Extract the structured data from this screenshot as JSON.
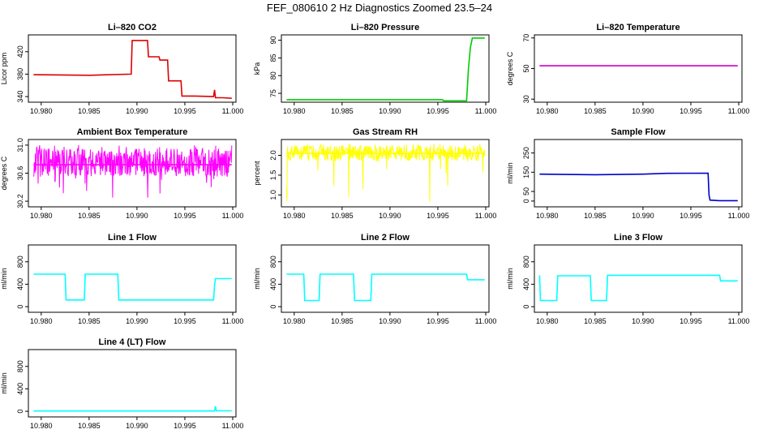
{
  "figure": {
    "title": "FEF_080610  2 Hz Diagnostics Zoomed 23.5–24"
  },
  "chart_data": [
    {
      "type": "line",
      "title": "Li–820 CO2",
      "xlabel": "",
      "ylabel": "Licor ppm",
      "color": "#dd0000",
      "xlim": [
        10.979,
        11.0
      ],
      "ylim": [
        330,
        450
      ],
      "xticks": [
        "10.980",
        "10.985",
        "10.990",
        "10.995",
        "11.000"
      ],
      "yticks": [
        "340",
        "380",
        "420"
      ],
      "series": [
        {
          "x": [
            10.9792,
            10.985,
            10.9894,
            10.9895,
            10.9911,
            10.9912,
            10.9923,
            10.9924,
            10.9932,
            10.9933,
            10.9946,
            10.9947,
            10.996,
            10.998,
            10.9981,
            10.9982,
            10.999,
            10.9999
          ],
          "y": [
            379,
            378,
            380,
            440,
            440,
            411,
            411,
            405,
            405,
            368,
            368,
            341,
            341,
            340,
            352,
            338,
            338,
            337
          ]
        }
      ]
    },
    {
      "type": "line",
      "title": "Li–820 Pressure",
      "xlabel": "",
      "ylabel": "kPa",
      "color": "#00cc00",
      "xlim": [
        10.979,
        11.0
      ],
      "ylim": [
        72.5,
        91.5
      ],
      "xticks": [
        "10.980",
        "10.985",
        "10.990",
        "10.995",
        "11.000"
      ],
      "yticks": [
        "75",
        "80",
        "85",
        "90"
      ],
      "series": [
        {
          "x": [
            10.9792,
            10.985,
            10.99,
            10.9955,
            10.9956,
            10.998,
            10.9982,
            10.9984,
            10.9986,
            10.9999
          ],
          "y": [
            73.2,
            73.2,
            73.2,
            73.2,
            72.9,
            72.9,
            82.0,
            88.0,
            90.6,
            90.6
          ]
        }
      ]
    },
    {
      "type": "line",
      "title": "Li–820 Temperature",
      "xlabel": "",
      "ylabel": "degrees C",
      "color": "#cc00cc",
      "xlim": [
        10.979,
        11.0
      ],
      "ylim": [
        28,
        72
      ],
      "xticks": [
        "10.980",
        "10.985",
        "10.990",
        "10.995",
        "11.000"
      ],
      "yticks": [
        "30",
        "50",
        "70"
      ],
      "series": [
        {
          "x": [
            10.9792,
            10.9999
          ],
          "y": [
            51.8,
            51.8
          ]
        }
      ]
    },
    {
      "type": "line",
      "title": "Ambient Box Temperature",
      "xlabel": "",
      "ylabel": "degrees C",
      "color": "#ff00ff",
      "xlim": [
        10.979,
        11.0
      ],
      "ylim": [
        30.12,
        31.08
      ],
      "xticks": [
        "10.980",
        "10.985",
        "10.990",
        "10.995",
        "11.000"
      ],
      "yticks": [
        "30.2",
        "30.6",
        "31.0"
      ],
      "series": [
        {
          "x": [
            10.9792,
            10.9999
          ],
          "y": [
            30.72,
            30.72
          ]
        }
      ],
      "noise": {
        "kind": "band",
        "low": 30.55,
        "high": 30.95,
        "min": 30.2,
        "max": 31.0,
        "seed": 11
      }
    },
    {
      "type": "line",
      "title": "Gas Stream RH",
      "xlabel": "",
      "ylabel": "percent",
      "color": "#ffff00",
      "xlim": [
        10.979,
        11.0
      ],
      "ylim": [
        0.7,
        2.4
      ],
      "xticks": [
        "10.980",
        "10.985",
        "10.990",
        "10.995",
        "11.000"
      ],
      "yticks": [
        "1.0",
        "1.5",
        "2.0"
      ],
      "series": [
        {
          "x": [
            10.9792,
            10.9999
          ],
          "y": [
            2.05,
            2.05
          ]
        }
      ],
      "noise": {
        "kind": "band",
        "low": 1.85,
        "high": 2.25,
        "min": 0.75,
        "max": 2.3,
        "seed": 23
      }
    },
    {
      "type": "line",
      "title": "Sample Flow",
      "xlabel": "",
      "ylabel": "ml/min",
      "color": "#0000cc",
      "xlim": [
        10.979,
        11.0
      ],
      "ylim": [
        -30,
        320
      ],
      "xticks": [
        "10.980",
        "10.985",
        "10.990",
        "10.995",
        "11.000"
      ],
      "yticks": [
        "0",
        "50",
        "150",
        "250"
      ],
      "series": [
        {
          "x": [
            10.9792,
            10.985,
            10.99,
            10.9925,
            10.9968,
            10.9969,
            10.997,
            10.998,
            10.9999
          ],
          "y": [
            140,
            137,
            140,
            144,
            145,
            30,
            5,
            2,
            2
          ]
        }
      ]
    },
    {
      "type": "line",
      "title": "Line 1 Flow",
      "xlabel": "",
      "ylabel": "ml/min",
      "color": "#00ffff",
      "xlim": [
        10.979,
        11.0
      ],
      "ylim": [
        -100,
        1100
      ],
      "xticks": [
        "10.980",
        "10.985",
        "10.990",
        "10.995",
        "11.000"
      ],
      "yticks": [
        "0",
        "400",
        "800"
      ],
      "series": [
        {
          "x": [
            10.9792,
            10.9825,
            10.9826,
            10.9845,
            10.9846,
            10.988,
            10.9881,
            10.998,
            10.9981,
            10.9982,
            10.9999
          ],
          "y": [
            580,
            580,
            120,
            120,
            580,
            580,
            120,
            120,
            380,
            500,
            500
          ]
        }
      ]
    },
    {
      "type": "line",
      "title": "Line 2 Flow",
      "xlabel": "",
      "ylabel": "ml/min",
      "color": "#00ffff",
      "xlim": [
        10.979,
        11.0
      ],
      "ylim": [
        -100,
        1100
      ],
      "xticks": [
        "10.980",
        "10.985",
        "10.990",
        "10.995",
        "11.000"
      ],
      "yticks": [
        "0",
        "400",
        "800"
      ],
      "series": [
        {
          "x": [
            10.9792,
            10.981,
            10.9811,
            10.9826,
            10.9827,
            10.9862,
            10.9863,
            10.988,
            10.9881,
            10.998,
            10.9981,
            10.9999
          ],
          "y": [
            580,
            580,
            110,
            110,
            580,
            580,
            110,
            110,
            580,
            580,
            480,
            480
          ]
        }
      ]
    },
    {
      "type": "line",
      "title": "Line 3 Flow",
      "xlabel": "",
      "ylabel": "ml/min",
      "color": "#00ffff",
      "xlim": [
        10.979,
        11.0
      ],
      "ylim": [
        -100,
        1100
      ],
      "xticks": [
        "10.980",
        "10.985",
        "10.990",
        "10.995",
        "11.000"
      ],
      "yticks": [
        "0",
        "400",
        "800"
      ],
      "series": [
        {
          "x": [
            10.9792,
            10.9793,
            10.981,
            10.9811,
            10.9845,
            10.9846,
            10.9862,
            10.9863,
            10.998,
            10.9981,
            10.9999
          ],
          "y": [
            560,
            110,
            110,
            550,
            550,
            110,
            110,
            560,
            560,
            460,
            460
          ]
        }
      ]
    },
    {
      "type": "line",
      "title": "Line 4 (LT) Flow",
      "xlabel": "",
      "ylabel": "ml/min",
      "color": "#00ffff",
      "xlim": [
        10.979,
        11.0
      ],
      "ylim": [
        -100,
        1100
      ],
      "xticks": [
        "10.980",
        "10.985",
        "10.990",
        "10.995",
        "11.000"
      ],
      "yticks": [
        "0",
        "400",
        "800"
      ],
      "series": [
        {
          "x": [
            10.9792,
            10.9981,
            10.9982,
            10.9983,
            10.9999
          ],
          "y": [
            5,
            5,
            90,
            8,
            8
          ]
        }
      ]
    }
  ]
}
